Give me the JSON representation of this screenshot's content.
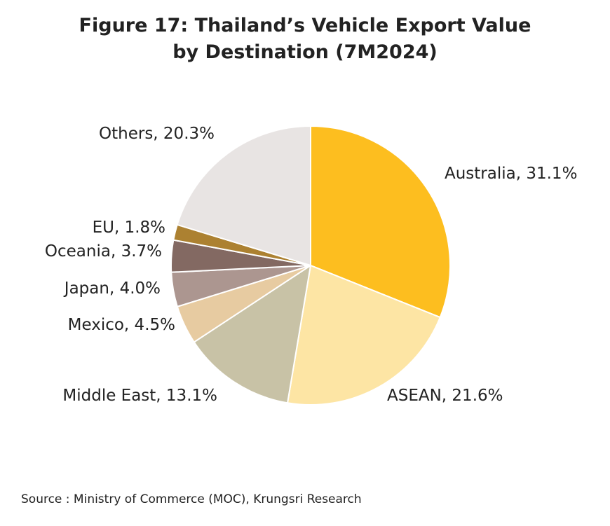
{
  "title": {
    "line1": "Figure 17: Thailand’s Vehicle Export Value",
    "line2": "by Destination (7M2024)"
  },
  "source": "Source : Ministry of Commerce (MOC), Krungsri Research",
  "chart_data": {
    "type": "pie",
    "title": "Figure 17: Thailand’s Vehicle Export Value by Destination (7M2024)",
    "unit": "%",
    "start_angle": "12 o'clock",
    "direction": "clockwise",
    "legend": "none (labels beside slices)",
    "slices": [
      {
        "name": "Australia",
        "value": 31.1,
        "label": "Australia, 31.1%",
        "color": "#FDBE1F"
      },
      {
        "name": "ASEAN",
        "value": 21.6,
        "label": "ASEAN, 21.6%",
        "color": "#FDE5A4"
      },
      {
        "name": "Middle East",
        "value": 13.1,
        "label": "Middle East, 13.1%",
        "color": "#C8C2A6"
      },
      {
        "name": "Mexico",
        "value": 4.5,
        "label": "Mexico, 4.5%",
        "color": "#E7CBA1"
      },
      {
        "name": "Japan",
        "value": 4.0,
        "label": "Japan, 4.0%",
        "color": "#AC9690"
      },
      {
        "name": "Oceania",
        "value": 3.7,
        "label": "Oceania, 3.7%",
        "color": "#836962"
      },
      {
        "name": "EU",
        "value": 1.8,
        "label": "EU, 1.8%",
        "color": "#AC8131"
      },
      {
        "name": "Others",
        "value": 20.3,
        "label": "Others, 20.3%",
        "color": "#E8E4E3"
      }
    ]
  }
}
